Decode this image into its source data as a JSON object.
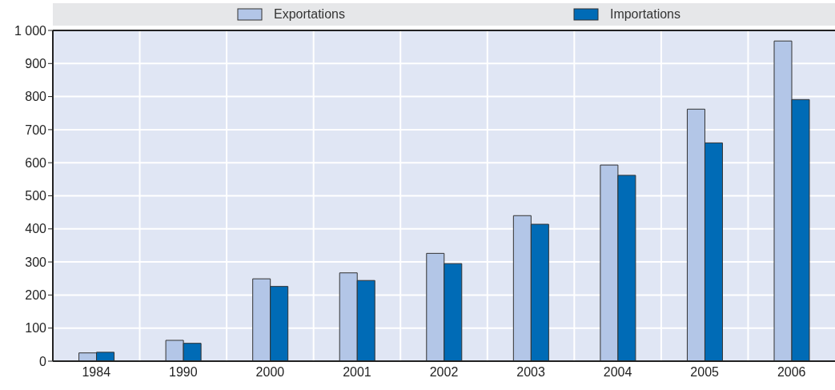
{
  "chart_data": {
    "type": "bar",
    "categories": [
      "1984",
      "1990",
      "2000",
      "2001",
      "2002",
      "2003",
      "2004",
      "2005",
      "2006"
    ],
    "series": [
      {
        "name": "Exportations",
        "color": "#b3c6e7",
        "values": [
          25,
          63,
          249,
          267,
          326,
          440,
          593,
          762,
          968
        ]
      },
      {
        "name": "Importations",
        "color": "#006bb6",
        "values": [
          27,
          54,
          226,
          244,
          295,
          414,
          562,
          660,
          791
        ]
      }
    ],
    "ylim": [
      0,
      1000
    ],
    "yticks": [
      0,
      100,
      200,
      300,
      400,
      500,
      600,
      700,
      800,
      900,
      {
        "value": 1000,
        "label": "1 000"
      }
    ],
    "grid": true,
    "legend": "top"
  }
}
